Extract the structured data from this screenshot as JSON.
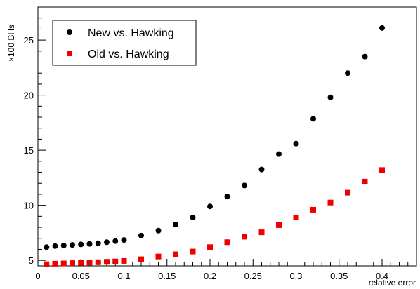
{
  "chart_data": {
    "type": "scatter",
    "title": "",
    "xlabel": "relative error",
    "ylabel": "×100 BHs",
    "xlim": [
      0,
      0.44
    ],
    "ylim": [
      4.5,
      28
    ],
    "x_ticks": [
      0,
      0.05,
      0.1,
      0.15,
      0.2,
      0.25,
      0.3,
      0.35,
      0.4
    ],
    "x_tick_labels": [
      "0",
      "0.05",
      "0.1",
      "0.15",
      "0.2",
      "0.25",
      "0.3",
      "0.35",
      "0.4"
    ],
    "y_ticks": [
      5,
      10,
      15,
      20,
      25
    ],
    "y_tick_labels": [
      "5",
      "10",
      "15",
      "20",
      "25"
    ],
    "grid": false,
    "legend_position": "top-left",
    "series": [
      {
        "name": "New vs. Hawking",
        "marker": "circle",
        "color": "#000000",
        "x": [
          0.01,
          0.02,
          0.03,
          0.04,
          0.05,
          0.06,
          0.07,
          0.08,
          0.09,
          0.1,
          0.12,
          0.14,
          0.16,
          0.18,
          0.2,
          0.22,
          0.24,
          0.26,
          0.28,
          0.3,
          0.32,
          0.34,
          0.36,
          0.38,
          0.4
        ],
        "y": [
          6.2,
          6.3,
          6.35,
          6.4,
          6.45,
          6.5,
          6.55,
          6.65,
          6.75,
          6.85,
          7.25,
          7.7,
          8.25,
          8.9,
          9.9,
          10.8,
          11.8,
          13.25,
          14.65,
          15.6,
          17.85,
          19.8,
          22.0,
          23.5,
          26.1
        ]
      },
      {
        "name": "Old vs. Hawking",
        "marker": "square",
        "color": "#ee0000",
        "x": [
          0.01,
          0.02,
          0.03,
          0.04,
          0.05,
          0.06,
          0.07,
          0.08,
          0.09,
          0.1,
          0.12,
          0.14,
          0.16,
          0.18,
          0.2,
          0.22,
          0.24,
          0.26,
          0.28,
          0.3,
          0.32,
          0.34,
          0.36,
          0.38,
          0.4
        ],
        "y": [
          4.65,
          4.7,
          4.72,
          4.75,
          4.78,
          4.8,
          4.83,
          4.87,
          4.9,
          4.95,
          5.1,
          5.35,
          5.55,
          5.8,
          6.2,
          6.65,
          7.15,
          7.55,
          8.2,
          8.9,
          9.6,
          10.25,
          11.15,
          12.15,
          13.2
        ]
      }
    ]
  }
}
